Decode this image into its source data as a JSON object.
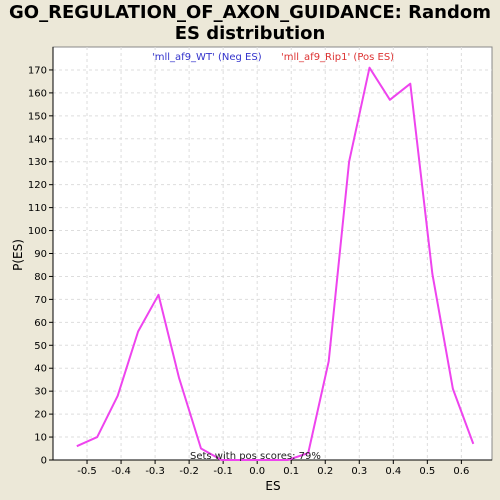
{
  "chart_data": {
    "type": "line",
    "title_line1": "GO_REGULATION_OF_AXON_GUIDANCE: Random",
    "title_line2": "ES distribution",
    "xlabel": "ES",
    "ylabel": "P(ES)",
    "xlim": [
      -0.6,
      0.69
    ],
    "ylim": [
      0,
      180
    ],
    "x_ticks": [
      -0.5,
      -0.4,
      -0.3,
      -0.2,
      -0.1,
      0.0,
      0.1,
      0.2,
      0.3,
      0.4,
      0.5,
      0.6
    ],
    "x_tick_labels": [
      "-0.5",
      "-0.4",
      "-0.3",
      "-0.2",
      "-0.1",
      "0.0",
      "0.1",
      "0.2",
      "0.3",
      "0.4",
      "0.5",
      "0.6"
    ],
    "y_ticks": [
      0,
      10,
      20,
      30,
      40,
      50,
      60,
      70,
      80,
      90,
      100,
      110,
      120,
      130,
      140,
      150,
      160,
      170
    ],
    "grid": true,
    "legend": {
      "neg": "'mll_af9_WT' (Neg ES)",
      "pos": "'mll_af9_Rip1' (Pos ES)"
    },
    "annotation": "Sets with pos scores: 79%",
    "series": [
      {
        "color": "#ee44ee",
        "x": [
          -0.53,
          -0.47,
          -0.41,
          -0.35,
          -0.29,
          -0.23,
          -0.165,
          -0.105,
          -0.045,
          0.02,
          0.09,
          0.15,
          0.21,
          0.27,
          0.33,
          0.39,
          0.45,
          0.515,
          0.575,
          0.635
        ],
        "y": [
          6,
          10,
          28,
          56,
          72,
          36,
          5,
          0,
          0,
          0,
          0,
          3,
          43,
          130,
          171,
          157,
          164,
          81,
          31,
          7
        ]
      }
    ]
  }
}
